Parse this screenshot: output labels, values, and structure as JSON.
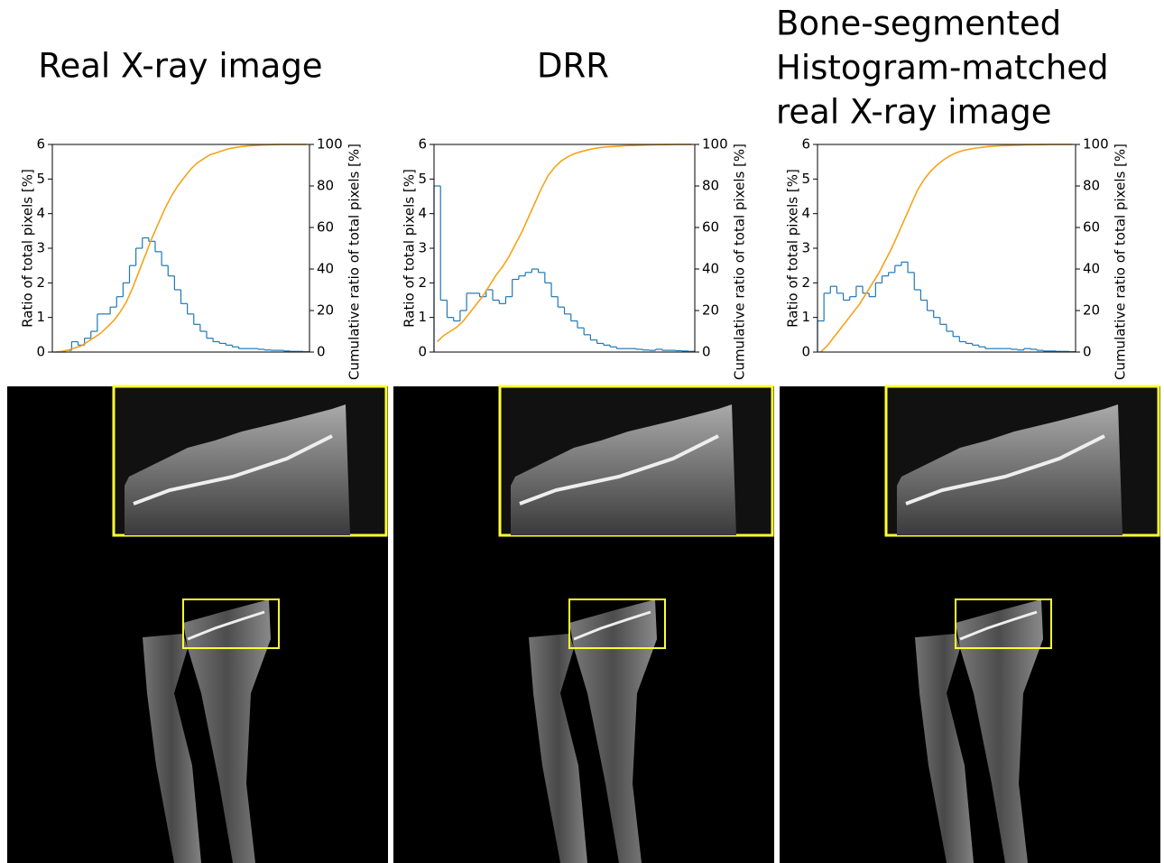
{
  "chart_data": [
    {
      "type": "histogram-cumulative",
      "title": [
        "Real X-ray image"
      ],
      "ylabel": "Ratio of total pixels [%]",
      "y2label": "Cumulative ratio of total pixels [%]",
      "ylim": [
        0,
        6
      ],
      "yticks": [
        0,
        1,
        2,
        3,
        4,
        5,
        6
      ],
      "y2lim": [
        0,
        100
      ],
      "y2ticks": [
        0,
        20,
        40,
        60,
        80,
        100
      ],
      "series": [
        {
          "color": "#1f77b4",
          "values": [
            0,
            0,
            0.05,
            0.3,
            0.2,
            0.4,
            0.6,
            1.1,
            1.1,
            1.3,
            1.6,
            2.0,
            2.5,
            3.0,
            3.3,
            3.2,
            2.9,
            2.5,
            2.2,
            1.8,
            1.4,
            1.1,
            0.8,
            0.6,
            0.4,
            0.3,
            0.25,
            0.2,
            0.15,
            0.1,
            0.1,
            0.1,
            0.08,
            0.06,
            0.05,
            0.05,
            0.03,
            0.02,
            0.02,
            0.01
          ]
        },
        {
          "color": "#f5a31b",
          "axis": "y2",
          "values": [
            0,
            0.3,
            1,
            2,
            3,
            5,
            7,
            9,
            12,
            15,
            19,
            24,
            31,
            39,
            47,
            55,
            62,
            69,
            75,
            80,
            84,
            88,
            91,
            93,
            95,
            96,
            97,
            98,
            98.5,
            99,
            99.3,
            99.5,
            99.7,
            99.8,
            99.9,
            100,
            100,
            100,
            100,
            100
          ]
        }
      ]
    },
    {
      "type": "histogram-cumulative",
      "title": [
        "DRR"
      ],
      "ylabel": "Ratio of total pixels [%]",
      "y2label": "Cumulative ratio of total pixels [%]",
      "ylim": [
        0,
        6
      ],
      "yticks": [
        0,
        1,
        2,
        3,
        4,
        5,
        6
      ],
      "y2lim": [
        0,
        100
      ],
      "y2ticks": [
        0,
        20,
        40,
        60,
        80,
        100
      ],
      "series": [
        {
          "color": "#1f77b4",
          "values": [
            4.8,
            1.5,
            1.0,
            0.9,
            1.2,
            1.7,
            1.7,
            1.6,
            1.8,
            1.5,
            1.4,
            1.6,
            2.1,
            2.2,
            2.3,
            2.4,
            2.3,
            2.0,
            1.6,
            1.3,
            1.1,
            0.9,
            0.7,
            0.5,
            0.35,
            0.25,
            0.2,
            0.15,
            0.1,
            0.1,
            0.1,
            0.08,
            0.06,
            0.05,
            0.08,
            0.05,
            0.05,
            0.04,
            0.03,
            0.02
          ]
        },
        {
          "color": "#f5a31b",
          "axis": "y2",
          "values": [
            5,
            8,
            10,
            12,
            15,
            19,
            23,
            27,
            32,
            37,
            41,
            46,
            52,
            58,
            65,
            72,
            79,
            85,
            89,
            92,
            94,
            95.5,
            96.5,
            97.3,
            98,
            98.5,
            98.8,
            99,
            99.2,
            99.4,
            99.5,
            99.6,
            99.7,
            99.8,
            99.85,
            99.9,
            99.95,
            100,
            100,
            100
          ]
        }
      ]
    },
    {
      "type": "histogram-cumulative",
      "title": [
        "Bone-segmented",
        "Histogram-matched",
        "real X-ray image"
      ],
      "ylabel": "Ratio of total pixels [%]",
      "y2label": "Cumulative ratio of total pixels [%]",
      "ylim": [
        0,
        6
      ],
      "yticks": [
        0,
        1,
        2,
        3,
        4,
        5,
        6
      ],
      "y2lim": [
        0,
        100
      ],
      "y2ticks": [
        0,
        20,
        40,
        60,
        80,
        100
      ],
      "series": [
        {
          "color": "#1f77b4",
          "values": [
            0.9,
            1.7,
            1.9,
            1.7,
            1.5,
            1.6,
            1.9,
            1.7,
            1.6,
            2.0,
            2.2,
            2.3,
            2.5,
            2.6,
            2.3,
            1.8,
            1.5,
            1.2,
            1.0,
            0.8,
            0.6,
            0.45,
            0.3,
            0.25,
            0.2,
            0.15,
            0.1,
            0.1,
            0.1,
            0.1,
            0.08,
            0.06,
            0.1,
            0.08,
            0.05,
            0.03,
            0.03,
            0.02,
            0.02,
            0.01
          ]
        },
        {
          "color": "#f5a31b",
          "axis": "y2",
          "values": [
            0,
            3,
            7,
            11,
            15,
            19,
            23,
            28,
            33,
            38,
            44,
            50,
            57,
            64,
            71,
            78,
            83,
            87,
            90,
            92.5,
            94.5,
            96,
            97,
            97.7,
            98.2,
            98.6,
            99,
            99.2,
            99.4,
            99.5,
            99.6,
            99.7,
            99.8,
            99.85,
            99.9,
            99.95,
            100,
            100,
            100,
            100
          ]
        }
      ]
    }
  ]
}
